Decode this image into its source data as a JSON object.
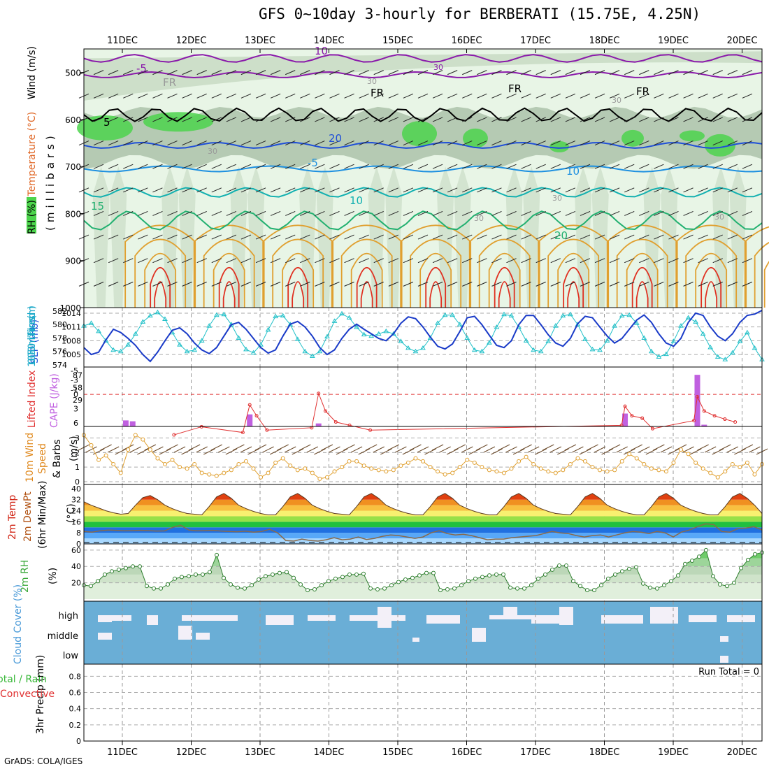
{
  "title": "GFS 0~10day 3-hourly for BERBERATI (15.75E, 4.25N)",
  "footer": "GrADS: COLA/IGES",
  "run_total": "Run Total = 0",
  "dates": [
    "11DEC",
    "12DEC",
    "13DEC",
    "14DEC",
    "15DEC",
    "16DEC",
    "17DEC",
    "18DEC",
    "19DEC",
    "20DEC"
  ],
  "colors": {
    "rh_light": "#e8f5e6",
    "rh_mid": "#c5d9c2",
    "rh_dark": "#9fb89c",
    "rh_green": "#4cd44c",
    "t_purple": "#8a1aaa",
    "t_blue": "#1f4fd8",
    "t_lightblue": "#1e90e0",
    "t_teal": "#12b0b0",
    "t_green": "#22b070",
    "t_orange": "#e0a030",
    "t_red": "#e03020",
    "slp": "#1a3bc8",
    "thick": "#20c0c8",
    "li": "#e03030",
    "cape": "#c060e0",
    "wind": "#e0a030",
    "barb": "#6b4a2a",
    "rh2m": "#3aa83a",
    "cloud": "#6aaed6",
    "cloud_gap": "#f3f0f8",
    "temp_band": [
      "#a8d8ff",
      "#58a8f8",
      "#2070e0",
      "#20c040",
      "#98e048",
      "#f8f070",
      "#f8c040",
      "#f09020",
      "#e04010",
      "#b00000"
    ]
  },
  "chart_data": [
    {
      "type": "heatmap",
      "panel": "upper-air",
      "ylabel_parts": [
        "RH (%)",
        "Temperature (°C)",
        "Wind (m/s)"
      ],
      "ylabel_unit": "(millibars)",
      "y_ticks": [
        500,
        600,
        700,
        800,
        900,
        1000
      ],
      "ylim": [
        1000,
        450
      ],
      "contour_labels": [
        "10",
        "-5",
        "5",
        "FR",
        "FR",
        "FR",
        "FR",
        "30",
        "30",
        "30",
        "30",
        "30",
        "30",
        "-5",
        "10",
        "10",
        "15",
        "20",
        "20",
        "30"
      ]
    },
    {
      "type": "line",
      "panel": "SLP and thickness",
      "ylabel_left": "1000-500mb Thickness (dm)",
      "ylabel_right": "SLP (mb)",
      "thickness_ticks": [
        "582",
        "580",
        "578",
        "576",
        "574"
      ],
      "slp_ticks": [
        "1014",
        "1011",
        "1008",
        "1005"
      ],
      "series": [
        {
          "name": "SLP (mb)",
          "values": [
            1006.5,
            1005.0,
            1005.5,
            1008.2,
            1010.5,
            1009.8,
            1008.5,
            1007.0,
            1005.0,
            1003.5,
            1005.5,
            1008.0,
            1010.3,
            1010.8,
            1009.5,
            1007.5,
            1006.0,
            1005.2,
            1006.5,
            1009.0,
            1011.5,
            1012.0,
            1010.5,
            1008.5,
            1006.5,
            1005.3,
            1006.0,
            1009.0,
            1011.6,
            1012.2,
            1011.0,
            1009.0,
            1006.5,
            1005.0,
            1006.0,
            1008.5,
            1010.5,
            1011.6,
            1010.5,
            1009.5,
            1008.5,
            1008.0,
            1009.5,
            1011.8,
            1013.2,
            1012.8,
            1011.0,
            1008.8,
            1006.8,
            1006.2,
            1007.3,
            1010.0,
            1013.0,
            1013.3,
            1011.5,
            1009.2,
            1007.0,
            1006.5,
            1008.0,
            1011.5,
            1013.5,
            1013.5,
            1011.5,
            1009.3,
            1007.5,
            1006.8,
            1008.5,
            1011.7,
            1013.3,
            1013.0,
            1011.0,
            1009.0,
            1007.5,
            1008.5,
            1010.5,
            1012.5,
            1013.6,
            1012.0,
            1009.5,
            1007.5,
            1006.8,
            1008.5,
            1012.0,
            1014.0,
            1013.5,
            1011.0,
            1009.0,
            1008.0,
            1009.5,
            1012.0,
            1013.5,
            1013.8,
            1014.6
          ]
        },
        {
          "name": "1000-500mb Thickness (dm)",
          "values": [
            579.8,
            580.2,
            579.0,
            577.6,
            576.2,
            576.0,
            577.0,
            578.6,
            580.4,
            581.3,
            581.8,
            580.8,
            578.8,
            577.0,
            576.0,
            576.2,
            577.6,
            579.8,
            581.4,
            581.5,
            580.0,
            578.0,
            576.3,
            575.8,
            577.0,
            579.2,
            581.2,
            581.3,
            580.0,
            577.8,
            576.0,
            575.3,
            576.0,
            578.2,
            580.5,
            581.6,
            581.0,
            579.6,
            578.5,
            578.3,
            578.6,
            579.0,
            578.6,
            577.5,
            576.5,
            576.0,
            576.5,
            578.0,
            580.2,
            581.4,
            581.4,
            580.0,
            578.0,
            576.2,
            576.0,
            577.3,
            579.6,
            581.5,
            581.3,
            579.6,
            577.6,
            576.2,
            576.0,
            577.5,
            579.8,
            581.3,
            581.5,
            580.0,
            577.8,
            576.3,
            576.2,
            577.6,
            579.8,
            581.3,
            581.4,
            580.2,
            578.0,
            576.0,
            575.2,
            575.6,
            577.5,
            579.8,
            581.0,
            580.4,
            578.6,
            576.6,
            575.2,
            574.8,
            575.8,
            577.5,
            578.8,
            576.5,
            574.8
          ]
        }
      ]
    },
    {
      "type": "bar",
      "panel": "Lifted Index and CAPE",
      "ylabel_left": "Lifted Index",
      "ylabel_right": "CAPE (J/kg)",
      "li_ticks": [
        "-5",
        "-3",
        "-1",
        "0",
        "3",
        "6"
      ],
      "cape_ticks": [
        "87",
        "58",
        "29"
      ],
      "cape": [
        {
          "day": 0.05,
          "value": 14
        },
        {
          "day": 0.15,
          "value": 12
        },
        {
          "day": 1.85,
          "value": 28
        },
        {
          "day": 2.85,
          "value": 7
        },
        {
          "day": 7.3,
          "value": 30
        },
        {
          "day": 8.35,
          "value": 120
        },
        {
          "day": 8.45,
          "value": 4
        }
      ],
      "li": [
        {
          "day": 0.75,
          "value": 8.5
        },
        {
          "day": 1.15,
          "value": 6.8
        },
        {
          "day": 1.75,
          "value": 8
        },
        {
          "day": 1.85,
          "value": 2.2
        },
        {
          "day": 1.95,
          "value": 4.5
        },
        {
          "day": 2.1,
          "value": 7.5
        },
        {
          "day": 2.75,
          "value": 7
        },
        {
          "day": 2.85,
          "value": -0.2
        },
        {
          "day": 2.95,
          "value": 3.5
        },
        {
          "day": 3.1,
          "value": 5.8
        },
        {
          "day": 3.3,
          "value": 6.5
        },
        {
          "day": 3.6,
          "value": 7.5
        },
        {
          "day": 7.25,
          "value": 6.5
        },
        {
          "day": 7.3,
          "value": 2.5
        },
        {
          "day": 7.4,
          "value": 4.5
        },
        {
          "day": 7.55,
          "value": 5
        },
        {
          "day": 7.7,
          "value": 7.2
        },
        {
          "day": 8.3,
          "value": 5.5
        },
        {
          "day": 8.35,
          "value": 0.5
        },
        {
          "day": 8.45,
          "value": 3.5
        },
        {
          "day": 8.6,
          "value": 4.5
        },
        {
          "day": 8.75,
          "value": 5.2
        },
        {
          "day": 8.9,
          "value": 5.8
        }
      ]
    },
    {
      "type": "line",
      "panel": "10m Wind Speed & Barbs",
      "ylabel": "10m Wind Speed & Barbs (m/s)",
      "y_ticks": [
        "3",
        "2",
        "1",
        "0"
      ],
      "values": [
        3.2,
        2.5,
        1.5,
        1.8,
        1.2,
        0.6,
        2.2,
        3.2,
        2.9,
        2.2,
        1.6,
        1.2,
        1.5,
        1.0,
        0.9,
        1.2,
        0.6,
        0.5,
        0.4,
        0.6,
        0.8,
        1.2,
        1.4,
        0.9,
        0.3,
        0.6,
        1.3,
        1.6,
        1.1,
        0.8,
        0.9,
        0.6,
        0.2,
        0.3,
        0.7,
        1.0,
        1.4,
        1.4,
        1.1,
        0.9,
        0.8,
        0.7,
        0.8,
        1.1,
        1.3,
        1.6,
        1.4,
        1.0,
        0.7,
        0.5,
        0.6,
        1.0,
        1.5,
        1.3,
        1.0,
        0.8,
        0.7,
        0.6,
        0.9,
        1.4,
        1.7,
        1.2,
        0.9,
        0.7,
        0.6,
        0.8,
        1.2,
        1.6,
        1.4,
        1.0,
        0.8,
        0.7,
        0.8,
        1.4,
        1.9,
        1.6,
        1.2,
        0.9,
        0.8,
        0.7,
        1.3,
        2.2,
        1.9,
        1.3,
        0.9,
        0.6,
        0.3,
        0.7,
        1.2,
        1.0,
        1.3,
        0.5,
        1.2
      ]
    },
    {
      "type": "area",
      "panel": "2m Temp",
      "ylabel": "2m Temp, 2m DewPt (6hr Min/Max) (°C)",
      "y_ticks": [
        "40",
        "32",
        "24",
        "16",
        "8",
        "0"
      ],
      "temp_series": {
        "name": "2m Temp",
        "values": [
          30.5,
          28,
          26,
          24,
          22.5,
          21.5,
          22,
          28,
          33.5,
          35,
          32,
          28,
          25.5,
          23.5,
          22,
          21.5,
          21,
          27,
          34,
          36.5,
          33,
          28,
          25.5,
          23.5,
          22,
          21,
          21,
          27,
          34,
          36.5,
          33,
          28,
          25.5,
          23.5,
          22,
          21.5,
          21,
          27,
          34,
          36.5,
          33,
          28,
          25.5,
          23.5,
          22,
          21,
          21,
          27,
          34,
          36.5,
          33,
          28,
          25.5,
          23.5,
          22,
          21,
          21,
          27,
          34,
          36.5,
          33,
          28,
          25.5,
          23.5,
          22,
          21.5,
          21,
          27,
          34,
          36.5,
          33,
          28,
          25.5,
          23.5,
          22,
          21,
          21,
          27,
          34,
          36.5,
          33,
          28,
          25.5,
          23.5,
          22,
          21,
          21,
          27,
          34,
          36.5,
          33,
          28,
          22
        ]
      },
      "dew_series": {
        "name": "2m DewPt",
        "values": [
          9,
          8.5,
          9.5,
          10,
          9.8,
          9.5,
          9.6,
          9.8,
          9.6,
          9.3,
          9.4,
          12,
          13.5,
          10,
          9.5,
          9.6,
          9.8,
          9.3,
          9,
          8.8,
          9.2,
          8.5,
          9,
          10.5,
          8,
          2.5,
          2,
          3.5,
          2.5,
          2,
          3,
          4.5,
          3,
          3.5,
          5,
          3.2,
          4,
          5.5,
          6.5,
          6,
          5,
          4,
          5,
          8,
          9.5,
          7.5,
          6.5,
          7,
          6,
          4.5,
          3,
          3.5,
          3.5,
          4.5,
          5,
          5.5,
          6,
          7.5,
          9,
          8,
          7.5,
          6,
          5,
          6,
          6.5,
          5,
          6.5,
          8,
          9,
          8.5,
          7.5,
          9,
          8,
          5,
          8.5,
          10,
          12.5,
          14.5,
          14,
          9,
          8.5,
          11,
          11.5,
          12.5,
          10
        ]
      }
    },
    {
      "type": "area",
      "panel": "2m RH",
      "ylabel": "2m RH (%)",
      "y_ticks": [
        "60",
        "40",
        "20"
      ],
      "values": [
        17,
        16,
        22,
        30,
        34,
        36,
        38,
        40,
        40,
        16,
        13,
        13,
        18,
        25,
        27,
        28,
        30,
        30,
        33,
        54,
        26,
        18,
        14,
        13,
        17,
        24,
        28,
        30,
        32,
        33,
        26,
        18,
        11,
        12,
        17,
        22,
        25,
        27,
        30,
        30,
        31,
        13,
        12,
        13,
        17,
        21,
        24,
        26,
        29,
        32,
        32,
        11,
        12,
        13,
        17,
        22,
        25,
        27,
        29,
        30,
        30,
        14,
        13,
        13,
        17,
        25,
        30,
        36,
        41,
        41,
        22,
        16,
        11,
        11,
        17,
        25,
        30,
        34,
        37,
        39,
        19,
        14,
        13,
        17,
        22,
        29,
        43,
        47,
        52,
        60,
        28,
        18,
        16,
        20,
        38,
        48,
        55,
        57
      ]
    },
    {
      "type": "table",
      "panel": "Cloud Cover",
      "ylabel": "Cloud Cover (%)",
      "levels": [
        "high",
        "middle",
        "low"
      ]
    },
    {
      "type": "bar",
      "panel": "3hr Precip",
      "ylabel_left": "Total / Rain",
      "ylabel_left2": "Convective",
      "ylabel": "3hr Precip (mm)",
      "y_ticks": [
        "0.8",
        "0.6",
        "0.4",
        "0.2",
        "0"
      ],
      "values": []
    }
  ]
}
